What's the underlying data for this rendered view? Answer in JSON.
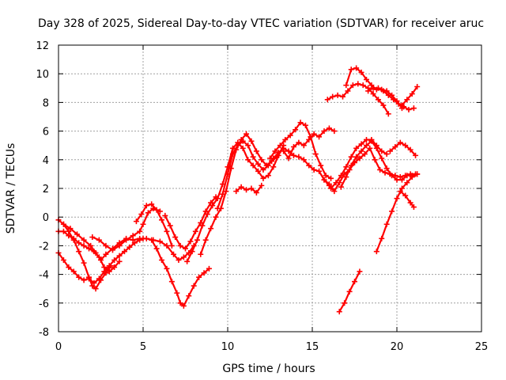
{
  "chart_data": {
    "type": "scatter",
    "title": "Day 328 of 2025, Sidereal Day-to-day VTEC variation (SDTVAR) for receiver aruc",
    "xlabel": "GPS time / hours",
    "ylabel": "SDTVAR / TECUs",
    "xlim": [
      0,
      25
    ],
    "ylim": [
      -8,
      12
    ],
    "xticks": [
      0,
      5,
      10,
      15,
      20,
      25
    ],
    "yticks": [
      -8,
      -6,
      -4,
      -2,
      0,
      2,
      4,
      6,
      8,
      10,
      12
    ],
    "grid": true,
    "legend": "none",
    "marker": "+",
    "color": "#ff0000",
    "series": [
      {
        "x": [
          0.0,
          0.3,
          0.6,
          0.9,
          1.2,
          1.5,
          1.8,
          2.1,
          2.4,
          2.7,
          3.0,
          3.3,
          3.6,
          3.9,
          4.2,
          4.5,
          4.8,
          5.0
        ],
        "y": [
          -2.5,
          -3.0,
          -3.5,
          -3.8,
          -4.2,
          -4.4,
          -4.3,
          -4.6,
          -4.3,
          -3.8,
          -3.4,
          -3.0,
          -2.7,
          -2.4,
          -2.1,
          -1.8,
          -1.6,
          -1.5
        ]
      },
      {
        "x": [
          0.0,
          0.3,
          0.6,
          0.9,
          1.2,
          1.5,
          1.8,
          2.1,
          2.4,
          2.7,
          3.0,
          3.3,
          3.6
        ],
        "y": [
          -1.0,
          -1.0,
          -1.3,
          -1.5,
          -1.8,
          -2.0,
          -2.2,
          -2.4,
          -2.8,
          -3.5,
          -3.8,
          -3.5,
          -3.1
        ]
      },
      {
        "x": [
          0.0,
          0.3,
          0.6,
          0.9,
          1.2,
          1.5,
          1.8,
          2.0,
          2.2,
          2.5,
          2.8,
          3.1
        ],
        "y": [
          -0.2,
          -0.5,
          -1.0,
          -1.6,
          -2.4,
          -3.2,
          -4.2,
          -4.8,
          -5.0,
          -4.4,
          -3.9,
          -3.4
        ]
      },
      {
        "x": [
          0.3,
          0.7,
          1.1,
          1.5,
          1.9,
          2.2,
          2.5,
          2.8,
          3.2,
          3.6,
          4.0,
          4.4,
          4.8,
          5.2,
          5.6,
          6.0,
          6.4,
          6.8,
          7.1,
          7.4,
          7.7,
          8.0
        ],
        "y": [
          -0.5,
          -0.8,
          -1.2,
          -1.6,
          -2.0,
          -2.5,
          -3.0,
          -2.6,
          -2.2,
          -1.8,
          -1.5,
          -1.6,
          -1.5,
          -1.5,
          -1.6,
          -1.7,
          -2.0,
          -2.6,
          -3.0,
          -2.8,
          -2.5,
          -2.0
        ]
      },
      {
        "x": [
          2.0,
          2.4,
          2.8,
          3.2,
          3.6,
          4.0,
          4.4,
          4.8,
          5.0,
          5.3,
          5.6,
          6.0
        ],
        "y": [
          -1.4,
          -1.6,
          -2.0,
          -2.3,
          -2.0,
          -1.6,
          -1.3,
          -1.0,
          -0.5,
          0.3,
          0.6,
          0.4
        ]
      },
      {
        "x": [
          4.6,
          4.9,
          5.2,
          5.5,
          5.8,
          6.1,
          6.4,
          6.7
        ],
        "y": [
          -0.3,
          0.2,
          0.8,
          0.9,
          0.5,
          -0.2,
          -1.0,
          -2.0
        ]
      },
      {
        "x": [
          5.5,
          5.8,
          6.1,
          6.4,
          6.7,
          7.0,
          7.2,
          7.4,
          7.7,
          8.0,
          8.3,
          8.6,
          8.9
        ],
        "y": [
          -1.6,
          -2.2,
          -3.0,
          -3.6,
          -4.5,
          -5.3,
          -6.0,
          -6.2,
          -5.5,
          -4.8,
          -4.2,
          -3.9,
          -3.6
        ]
      },
      {
        "x": [
          6.3,
          6.6,
          6.9,
          7.2,
          7.5,
          7.8,
          8.1,
          8.4,
          8.7,
          9.0,
          9.3
        ],
        "y": [
          0.1,
          -0.6,
          -1.4,
          -2.0,
          -2.2,
          -1.7,
          -1.0,
          -0.4,
          0.4,
          1.0,
          1.4
        ]
      },
      {
        "x": [
          7.6,
          7.9,
          8.2,
          8.5,
          8.8,
          9.1,
          9.4,
          9.7,
          10.0,
          10.3,
          10.6,
          10.9,
          11.2,
          11.5,
          11.8,
          12.1,
          12.4,
          12.7,
          13.0,
          13.3
        ],
        "y": [
          -3.1,
          -2.4,
          -1.6,
          -0.6,
          0.2,
          0.8,
          1.3,
          2.3,
          3.5,
          4.8,
          5.2,
          4.8,
          4.0,
          3.6,
          3.2,
          2.7,
          2.9,
          3.5,
          4.3,
          5.0
        ]
      },
      {
        "x": [
          8.4,
          8.7,
          9.0,
          9.3,
          9.6,
          9.9,
          10.2,
          10.5,
          10.8,
          11.1,
          11.4,
          11.7,
          12.0,
          12.3,
          12.6,
          12.9
        ],
        "y": [
          -2.6,
          -1.6,
          -0.8,
          0.0,
          0.6,
          1.8,
          3.4,
          4.7,
          5.4,
          5.8,
          5.3,
          4.6,
          4.0,
          3.6,
          3.9,
          4.2
        ]
      },
      {
        "x": [
          9.4,
          9.7,
          10.0,
          10.3,
          10.6,
          10.9,
          11.2,
          11.5,
          11.8,
          12.1,
          12.4,
          12.7,
          13.0,
          13.3,
          13.6,
          13.9,
          14.2,
          14.5,
          14.8,
          15.1,
          15.4,
          15.7,
          16.0
        ],
        "y": [
          0.6,
          1.6,
          3.0,
          4.4,
          5.0,
          5.3,
          5.0,
          4.2,
          3.7,
          3.3,
          3.6,
          4.1,
          4.5,
          4.8,
          4.6,
          4.3,
          4.2,
          4.0,
          3.6,
          3.3,
          3.2,
          2.6,
          2.3
        ]
      },
      {
        "x": [
          10.5,
          10.8,
          11.1,
          11.4,
          11.7,
          12.0
        ],
        "y": [
          1.8,
          2.1,
          1.9,
          2.0,
          1.7,
          2.2
        ]
      },
      {
        "x": [
          12.5,
          12.8,
          13.1,
          13.4,
          13.7,
          14.0,
          14.3,
          14.6,
          14.9,
          15.2,
          15.5,
          15.8,
          16.1
        ],
        "y": [
          4.1,
          4.6,
          5.0,
          5.4,
          5.7,
          6.1,
          6.6,
          6.4,
          5.6,
          4.4,
          3.6,
          2.9,
          2.7
        ]
      },
      {
        "x": [
          13.3,
          13.6,
          13.9,
          14.2,
          14.5,
          14.8,
          15.1,
          15.4,
          15.7,
          16.0,
          16.3
        ],
        "y": [
          4.6,
          4.1,
          4.9,
          5.2,
          5.0,
          5.4,
          5.8,
          5.6,
          6.0,
          6.2,
          6.0
        ]
      },
      {
        "x": [
          15.7,
          16.0,
          16.3,
          16.6,
          16.9,
          17.2,
          17.5,
          17.8,
          18.1,
          18.4,
          18.7,
          19.0,
          19.3,
          19.6,
          19.9,
          20.2,
          20.5,
          20.8,
          21.1
        ],
        "y": [
          2.6,
          2.2,
          1.8,
          2.4,
          3.0,
          3.3,
          3.8,
          4.1,
          4.4,
          4.8,
          4.0,
          3.3,
          3.1,
          3.0,
          2.9,
          2.8,
          2.9,
          3.0,
          3.0
        ]
      },
      {
        "x": [
          16.1,
          16.4,
          16.7,
          17.0,
          17.3,
          17.6,
          17.9,
          18.2,
          18.5,
          18.8,
          19.1,
          19.4
        ],
        "y": [
          2.0,
          2.4,
          2.9,
          3.5,
          4.2,
          4.8,
          5.1,
          5.4,
          5.4,
          5.0,
          4.6,
          4.4
        ]
      },
      {
        "x": [
          16.6,
          16.9,
          17.2,
          17.5,
          17.8
        ],
        "y": [
          -6.6,
          -6.0,
          -5.2,
          -4.5,
          -3.8
        ]
      },
      {
        "x": [
          16.7,
          17.0,
          17.3,
          17.6,
          17.9,
          18.2,
          18.5,
          18.8,
          19.1,
          19.4,
          19.7,
          20.0,
          20.3,
          20.6,
          20.9,
          21.2
        ],
        "y": [
          2.1,
          2.8,
          3.6,
          4.2,
          4.6,
          5.0,
          5.3,
          4.8,
          4.1,
          3.4,
          2.9,
          2.6,
          2.6,
          2.9,
          2.9,
          3.0
        ]
      },
      {
        "x": [
          15.9,
          16.2,
          16.5,
          16.8,
          17.1,
          17.4,
          17.7,
          18.0,
          18.3,
          18.6,
          18.9,
          19.2,
          19.5
        ],
        "y": [
          8.2,
          8.4,
          8.5,
          8.4,
          8.8,
          9.2,
          9.3,
          9.2,
          9.0,
          8.6,
          8.2,
          7.8,
          7.2
        ]
      },
      {
        "x": [
          17.0,
          17.3,
          17.6,
          17.9,
          18.2,
          18.5,
          18.8,
          19.1,
          19.4,
          19.7,
          20.0,
          20.3
        ],
        "y": [
          9.2,
          10.3,
          10.4,
          10.1,
          9.6,
          9.2,
          8.9,
          8.9,
          8.8,
          8.5,
          8.1,
          7.6
        ]
      },
      {
        "x": [
          18.3,
          18.6,
          18.9,
          19.2,
          19.5,
          19.8,
          20.1,
          20.4,
          20.7,
          21.0
        ],
        "y": [
          8.8,
          9.0,
          9.0,
          8.8,
          8.5,
          8.2,
          7.9,
          7.7,
          7.5,
          7.6
        ]
      },
      {
        "x": [
          20.3,
          20.6,
          20.9,
          21.2
        ],
        "y": [
          7.8,
          8.2,
          8.6,
          9.1
        ]
      },
      {
        "x": [
          18.8,
          19.1,
          19.4,
          19.7,
          20.0,
          20.3,
          20.6,
          20.9,
          21.2
        ],
        "y": [
          -2.4,
          -1.5,
          -0.5,
          0.4,
          1.3,
          2.0,
          2.4,
          2.8,
          3.0
        ]
      },
      {
        "x": [
          19.6,
          19.9,
          20.2,
          20.5,
          20.8,
          21.1
        ],
        "y": [
          4.6,
          4.9,
          5.2,
          5.0,
          4.7,
          4.3
        ]
      },
      {
        "x": [
          20.2,
          20.5,
          20.8,
          21.0
        ],
        "y": [
          1.8,
          1.5,
          1.0,
          0.7
        ]
      }
    ]
  }
}
